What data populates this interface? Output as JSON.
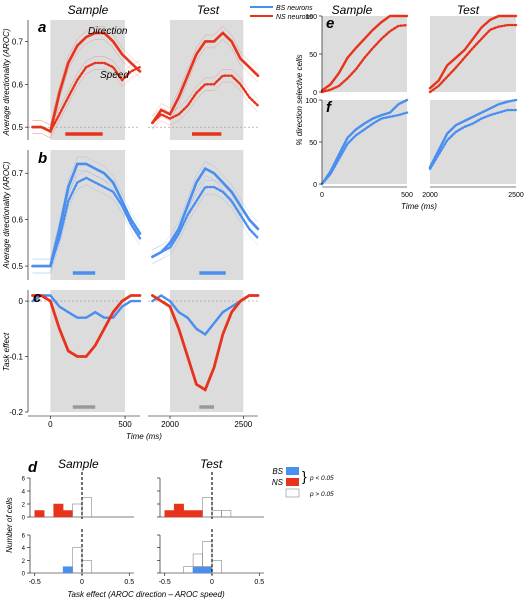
{
  "colors": {
    "ns": "#e8331c",
    "bs": "#4a8ef0",
    "shade": "#dcdcdc",
    "bar_grey": "#999999"
  },
  "legend_top": {
    "bs": "BS neurons",
    "ns": "NS neurons"
  },
  "column_titles": {
    "sample": "Sample",
    "test": "Test"
  },
  "panels": {
    "a": {
      "letter": "a",
      "ylabel": "Average directionality (AROC)",
      "yticks": [
        "0.7",
        "0.6",
        "0.5"
      ],
      "annotations": {
        "direction": "Direction",
        "speed": "Speed"
      }
    },
    "b": {
      "letter": "b",
      "ylabel": "Average directionality (AROC)",
      "yticks": [
        "0.7",
        "0.6",
        "0.5"
      ]
    },
    "c": {
      "letter": "c",
      "ylabel": "Task effect",
      "yticks": [
        "0",
        "-0.1",
        "-0.2"
      ],
      "xticks_sample": [
        "0",
        "500"
      ],
      "xticks_test": [
        "2000",
        "2500"
      ],
      "xlabel": "Time (ms)"
    },
    "d": {
      "letter": "d",
      "ylabel": "Number of cells",
      "yticks_top": [
        "6",
        "4",
        "2",
        "0"
      ],
      "yticks_bottom": [
        "6",
        "4",
        "2",
        "0"
      ],
      "xticks": [
        "-0.5",
        "0",
        "0.5"
      ],
      "xlabel": "Task effect  (AROC direction – AROC speed)",
      "legend": {
        "bs": "BS",
        "ns": "NS",
        "sig": "p < 0.05",
        "nonsig": "p > 0.05"
      }
    },
    "e": {
      "letter": "e",
      "ylabel": "% direction selective cells",
      "yticks": [
        "100",
        "50",
        "0"
      ]
    },
    "f": {
      "letter": "f",
      "yticks": [
        "100",
        "50",
        "0"
      ],
      "xticks_sample": [
        "0",
        "500"
      ],
      "xticks_test": [
        "2000",
        "2500"
      ],
      "xlabel": "Time (ms)"
    }
  },
  "chart_data": [
    {
      "panel": "a",
      "type": "line",
      "ylim": [
        0.47,
        0.75
      ],
      "x_range_sample": [
        -150,
        600
      ],
      "x_range_test": [
        1850,
        2600
      ],
      "series": [
        {
          "name": "Direction",
          "x_sample": [
            -120,
            -60,
            0,
            60,
            120,
            180,
            240,
            300,
            360,
            420,
            480,
            540,
            600
          ],
          "sample": [
            0.5,
            0.5,
            0.49,
            0.58,
            0.65,
            0.69,
            0.71,
            0.72,
            0.72,
            0.7,
            0.67,
            0.65,
            0.63
          ],
          "x_test": [
            1880,
            1940,
            2000,
            2060,
            2120,
            2180,
            2240,
            2300,
            2360,
            2420,
            2480,
            2540,
            2600
          ],
          "test": [
            0.51,
            0.54,
            0.53,
            0.57,
            0.62,
            0.67,
            0.7,
            0.7,
            0.72,
            0.7,
            0.66,
            0.64,
            0.62
          ]
        },
        {
          "name": "Speed",
          "x_sample": [
            -120,
            -60,
            0,
            60,
            120,
            180,
            240,
            300,
            360,
            420,
            480,
            540,
            600
          ],
          "sample": [
            0.5,
            0.5,
            0.49,
            0.53,
            0.57,
            0.61,
            0.64,
            0.65,
            0.65,
            0.64,
            0.61,
            0.63,
            0.64
          ],
          "x_test": [
            1880,
            1940,
            2000,
            2060,
            2120,
            2180,
            2240,
            2300,
            2360,
            2420,
            2480,
            2540,
            2600
          ],
          "test": [
            0.51,
            0.53,
            0.52,
            0.53,
            0.55,
            0.58,
            0.6,
            0.6,
            0.62,
            0.62,
            0.6,
            0.57,
            0.55
          ]
        }
      ]
    },
    {
      "panel": "b",
      "type": "line",
      "ylim": [
        0.47,
        0.75
      ],
      "series": [
        {
          "name": "Direction",
          "x_sample": [
            -120,
            -60,
            0,
            60,
            120,
            180,
            240,
            300,
            360,
            420,
            480,
            540,
            600
          ],
          "sample": [
            0.5,
            0.5,
            0.5,
            0.58,
            0.67,
            0.72,
            0.72,
            0.71,
            0.7,
            0.68,
            0.64,
            0.6,
            0.57
          ],
          "x_test": [
            1880,
            1940,
            2000,
            2060,
            2120,
            2180,
            2240,
            2300,
            2360,
            2420,
            2480,
            2540,
            2600
          ],
          "test": [
            0.52,
            0.53,
            0.55,
            0.58,
            0.63,
            0.68,
            0.71,
            0.7,
            0.68,
            0.66,
            0.63,
            0.6,
            0.58
          ]
        },
        {
          "name": "Speed",
          "x_sample": [
            -120,
            -60,
            0,
            60,
            120,
            180,
            240,
            300,
            360,
            420,
            480,
            540,
            600
          ],
          "sample": [
            0.5,
            0.5,
            0.5,
            0.56,
            0.64,
            0.68,
            0.69,
            0.68,
            0.67,
            0.66,
            0.63,
            0.59,
            0.56
          ],
          "x_test": [
            1880,
            1940,
            2000,
            2060,
            2120,
            2180,
            2240,
            2300,
            2360,
            2420,
            2480,
            2540,
            2600
          ],
          "test": [
            0.52,
            0.53,
            0.54,
            0.57,
            0.61,
            0.64,
            0.67,
            0.67,
            0.66,
            0.64,
            0.61,
            0.58,
            0.56
          ]
        }
      ]
    },
    {
      "panel": "c",
      "type": "line",
      "ylim": [
        -0.2,
        0.02
      ],
      "series": [
        {
          "name": "BS",
          "x_sample": [
            -120,
            -60,
            0,
            60,
            120,
            180,
            240,
            300,
            360,
            420,
            480,
            540,
            600
          ],
          "sample": [
            0.0,
            0.01,
            0.01,
            -0.01,
            -0.02,
            -0.03,
            -0.03,
            -0.02,
            -0.03,
            -0.03,
            -0.01,
            0.0,
            0.0
          ],
          "x_test": [
            1880,
            1940,
            2000,
            2060,
            2120,
            2180,
            2240,
            2300,
            2360,
            2420,
            2480,
            2540,
            2600
          ],
          "test": [
            0.0,
            0.01,
            0.0,
            -0.02,
            -0.03,
            -0.05,
            -0.06,
            -0.04,
            -0.02,
            -0.01,
            0.0,
            0.01,
            0.01
          ]
        },
        {
          "name": "NS",
          "x_sample": [
            -120,
            -60,
            0,
            60,
            120,
            180,
            240,
            300,
            360,
            420,
            480,
            540,
            600
          ],
          "sample": [
            0.01,
            0.01,
            0.0,
            -0.05,
            -0.09,
            -0.1,
            -0.1,
            -0.08,
            -0.05,
            -0.02,
            0.0,
            0.01,
            0.01
          ],
          "x_test": [
            1880,
            1940,
            2000,
            2060,
            2120,
            2180,
            2240,
            2300,
            2360,
            2420,
            2480,
            2540,
            2600
          ],
          "test": [
            0.01,
            0.0,
            -0.01,
            -0.05,
            -0.1,
            -0.15,
            -0.16,
            -0.12,
            -0.06,
            -0.02,
            0.0,
            0.01,
            0.01
          ]
        }
      ]
    },
    {
      "panel": "d",
      "type": "bar",
      "xlim": [
        -0.55,
        0.55
      ],
      "bin_centers": [
        -0.45,
        -0.35,
        -0.25,
        -0.15,
        -0.05,
        0.05,
        0.15
      ],
      "NS_sample_sig": [
        1,
        0,
        2,
        1,
        0,
        0,
        0
      ],
      "NS_sample_nonsig": [
        0,
        0,
        0,
        0,
        2,
        3,
        0
      ],
      "NS_test_sig": [
        1,
        2,
        1,
        1,
        0,
        0,
        0
      ],
      "NS_test_nonsig": [
        0,
        0,
        0,
        0,
        3,
        1,
        1
      ],
      "BS_sample_sig": [
        0,
        0,
        0,
        1,
        0,
        0,
        0
      ],
      "BS_sample_nonsig": [
        0,
        0,
        0,
        0,
        4,
        2,
        0
      ],
      "BS_test_sig": [
        0,
        0,
        0,
        1,
        1,
        0,
        0
      ],
      "BS_test_nonsig": [
        0,
        0,
        1,
        2,
        4,
        2,
        0
      ]
    },
    {
      "panel": "e",
      "type": "line",
      "ylim": [
        0,
        100
      ],
      "series": [
        {
          "name": "Direction",
          "x_sample": [
            0,
            50,
            100,
            150,
            200,
            250,
            300,
            350,
            400,
            450,
            500
          ],
          "sample": [
            2,
            10,
            25,
            45,
            58,
            70,
            82,
            92,
            100,
            100,
            100
          ],
          "x_test": [
            2000,
            2050,
            2100,
            2150,
            2200,
            2250,
            2300,
            2350,
            2400,
            2450,
            2500
          ],
          "test": [
            5,
            15,
            35,
            45,
            55,
            70,
            85,
            95,
            100,
            100,
            100
          ]
        },
        {
          "name": "Speed",
          "x_sample": [
            0,
            50,
            100,
            150,
            200,
            250,
            300,
            350,
            400,
            450,
            500
          ],
          "sample": [
            0,
            3,
            8,
            18,
            30,
            45,
            58,
            70,
            80,
            87,
            88
          ],
          "x_test": [
            2000,
            2050,
            2100,
            2150,
            2200,
            2250,
            2300,
            2350,
            2400,
            2450,
            2500
          ],
          "test": [
            0,
            8,
            20,
            32,
            45,
            58,
            70,
            82,
            86,
            88,
            88
          ]
        }
      ]
    },
    {
      "panel": "f",
      "type": "line",
      "ylim": [
        0,
        100
      ],
      "series": [
        {
          "name": "Direction",
          "x_sample": [
            0,
            50,
            100,
            150,
            200,
            250,
            300,
            350,
            400,
            450,
            500
          ],
          "sample": [
            0,
            15,
            35,
            55,
            65,
            72,
            78,
            82,
            85,
            95,
            100
          ],
          "x_test": [
            2000,
            2050,
            2100,
            2150,
            2200,
            2250,
            2300,
            2350,
            2400,
            2450,
            2500
          ],
          "test": [
            20,
            40,
            60,
            70,
            75,
            80,
            85,
            90,
            95,
            98,
            100
          ]
        },
        {
          "name": "Speed",
          "x_sample": [
            0,
            50,
            100,
            150,
            200,
            250,
            300,
            350,
            400,
            450,
            500
          ],
          "sample": [
            0,
            12,
            30,
            48,
            58,
            65,
            72,
            78,
            80,
            82,
            85
          ],
          "x_test": [
            2000,
            2050,
            2100,
            2150,
            2200,
            2250,
            2300,
            2350,
            2400,
            2450,
            2500
          ],
          "test": [
            18,
            35,
            52,
            62,
            68,
            72,
            78,
            82,
            85,
            88,
            88
          ]
        }
      ]
    }
  ]
}
